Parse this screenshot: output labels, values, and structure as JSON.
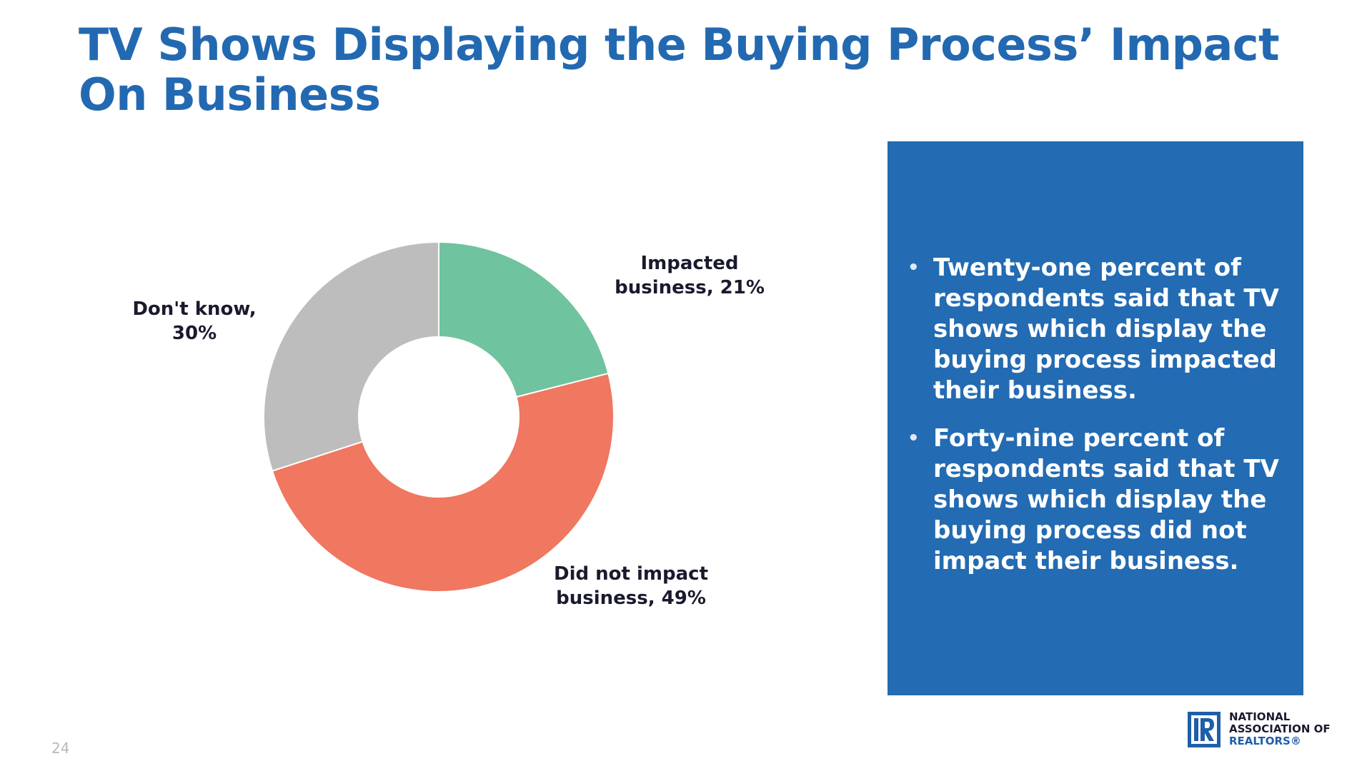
{
  "slide": {
    "title_line1": "TV Shows Displaying the Buying Process’ Impact",
    "title_line2": "On Business",
    "page_number": "24"
  },
  "colors": {
    "title": "#2369b1",
    "panel": "#236bb2",
    "impacted": "#6fc39e",
    "did_not_impact": "#f07760",
    "dont_know": "#bdbdbd"
  },
  "chart_data": {
    "type": "pie",
    "variant": "donut",
    "title": "",
    "slices": [
      {
        "key": "impacted",
        "label_line1": "Impacted",
        "label_line2": "business, 21%",
        "value": 21,
        "color": "#6fc39e"
      },
      {
        "key": "did_not_impact",
        "label_line1": "Did not impact",
        "label_line2": "business, 49%",
        "value": 49,
        "color": "#f07760"
      },
      {
        "key": "dont_know",
        "label_line1": "Don't know,",
        "label_line2": "30%",
        "value": 30,
        "color": "#bdbdbd"
      }
    ],
    "start_angle": "12 o'clock",
    "direction": "clockwise",
    "legend": "none (labels outside slices)"
  },
  "panel": {
    "bullets": [
      "Twenty-one percent of respondents said that TV shows which display the buying process impacted their business.",
      "Forty-nine percent of respondents said that TV shows which display the buying process did not impact their business."
    ]
  },
  "logo": {
    "line1": "NATIONAL",
    "line2": "ASSOCIATION OF",
    "line3": "REALTORS®",
    "icon": "realtor-r-block-icon"
  }
}
